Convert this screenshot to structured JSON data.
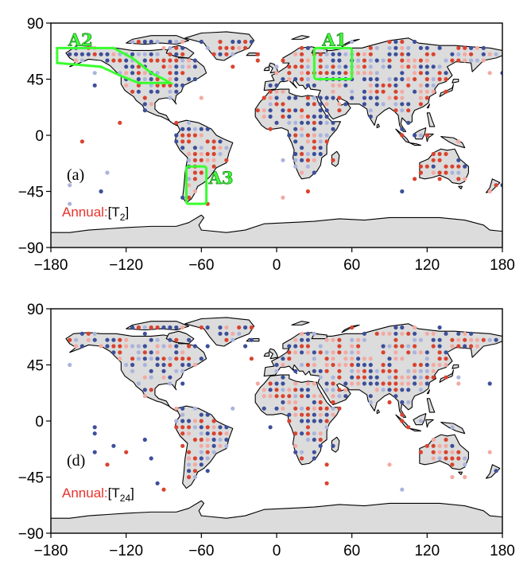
{
  "panels": [
    {
      "id": "a",
      "letter": "(a)",
      "annotation_prefix": "Annual:",
      "annotation_bracket_open": "[",
      "annotation_var": "T",
      "annotation_sub": "2",
      "annotation_bracket_close": "]",
      "regions": [
        {
          "label": "A1",
          "lon_range": [
            30,
            60
          ],
          "lat_range": [
            45,
            70
          ]
        },
        {
          "label": "A2",
          "polygon": [
            [
              -175,
              70
            ],
            [
              -130,
              70
            ],
            [
              -115,
              62
            ],
            [
              -100,
              50
            ],
            [
              -90,
              45
            ],
            [
              -85,
              42
            ],
            [
              -110,
              42
            ],
            [
              -125,
              48
            ],
            [
              -140,
              55
            ],
            [
              -175,
              58
            ]
          ]
        },
        {
          "label": "A3",
          "lon_range": [
            -72,
            -56
          ],
          "lat_range": [
            -55,
            -25
          ]
        }
      ]
    },
    {
      "id": "d",
      "letter": "(d)",
      "annotation_prefix": "Annual:",
      "annotation_bracket_open": "[",
      "annotation_var": "T",
      "annotation_sub": "24",
      "annotation_bracket_close": "]",
      "regions": []
    }
  ],
  "axes": {
    "x_ticks": [
      "-180",
      "-120",
      "-60",
      "0",
      "60",
      "120",
      "180"
    ],
    "y_ticks": [
      "90",
      "45",
      "0",
      "-45",
      "-90"
    ],
    "lon_range": [
      -180,
      180
    ],
    "lat_range": [
      -90,
      90
    ]
  },
  "colors": {
    "land": "#dcdcdc",
    "coast": "#000000",
    "ocean": "#ffffff",
    "region_box": "#39ff2e",
    "annotation_red": "#e8322c",
    "dot_red_strong": "#d9432f",
    "dot_red_light": "#f2aaa2",
    "dot_blue_strong": "#3c4f9a",
    "dot_blue_light": "#aab4dc"
  }
}
